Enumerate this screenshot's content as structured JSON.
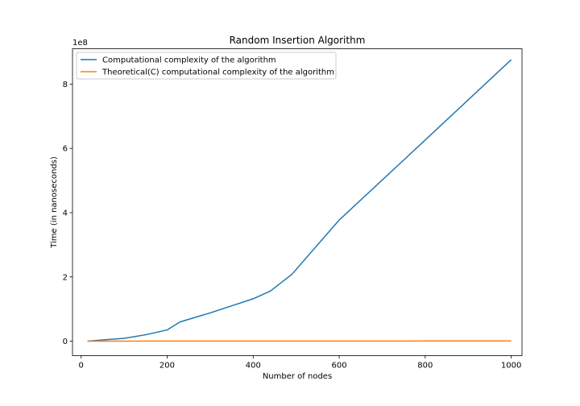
{
  "chart_data": {
    "type": "line",
    "title": "Random Insertion Algorithm",
    "xlabel": "Number of nodes",
    "ylabel": "Time (in nanoseconds)",
    "y_offset_label": "1e8",
    "xlim": [
      -20,
      1025
    ],
    "ylim": [
      -0.45,
      9.1
    ],
    "y_scale_factor": 100000000,
    "x_ticks": [
      0,
      200,
      400,
      600,
      800,
      1000
    ],
    "x_tick_labels": [
      "0",
      "200",
      "400",
      "600",
      "800",
      "1000"
    ],
    "y_ticks": [
      0,
      2,
      4,
      6,
      8
    ],
    "y_tick_labels": [
      "0",
      "2",
      "4",
      "6",
      "8"
    ],
    "grid": false,
    "legend_position": "top-left",
    "series": [
      {
        "name": "Computational complexity of the algorithm",
        "color": "#1f77b4",
        "x": [
          15,
          50,
          100,
          150,
          200,
          230,
          300,
          350,
          400,
          440,
          490,
          600,
          800,
          1000
        ],
        "y": [
          0.0,
          0.04,
          0.09,
          0.2,
          0.35,
          0.6,
          0.88,
          1.1,
          1.32,
          1.56,
          2.08,
          3.77,
          6.26,
          8.76
        ]
      },
      {
        "name": "Theoretical(C) computational complexity of the algorithm",
        "color": "#ff7f0e",
        "x": [
          15,
          50,
          100,
          200,
          400,
          600,
          800,
          1000
        ],
        "y": [
          0.0,
          0.001,
          0.002,
          0.003,
          0.004,
          0.005,
          0.006,
          0.008
        ]
      }
    ]
  }
}
